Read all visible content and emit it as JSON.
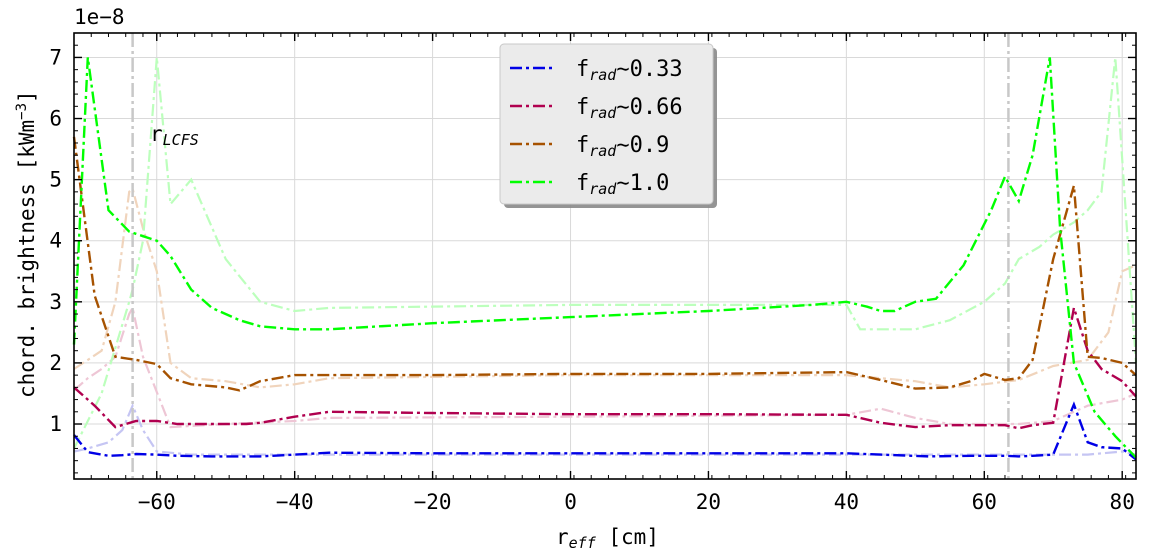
{
  "chart_data": {
    "type": "line",
    "offset_text": "1e−8",
    "xlabel": "r_eff [cm]",
    "ylabel": "chord. brightness [kWm⁻³]",
    "xlim": [
      -72,
      82
    ],
    "ylim": [
      0.1,
      7.4
    ],
    "xticks": [
      -60,
      -40,
      -20,
      0,
      20,
      40,
      60,
      80
    ],
    "xtick_labels": [
      "−60",
      "−40",
      "−20",
      "0",
      "20",
      "40",
      "60",
      "80"
    ],
    "yticks": [
      1,
      2,
      3,
      4,
      5,
      6,
      7
    ],
    "ytick_labels": [
      "1",
      "2",
      "3",
      "4",
      "5",
      "6",
      "7"
    ],
    "grid": true,
    "legend_position": "top-center",
    "lcfs_lines": [
      -63.5,
      63.5
    ],
    "lcfs_label": "r_LCFS",
    "series": [
      {
        "name": "f_rad ~ 0.33",
        "color": "#0000e6",
        "faint_color": "#c5c5f3",
        "x": [
          -72,
          -70,
          -67,
          -65,
          -63,
          -60,
          -57,
          -52,
          -45,
          -40,
          -35,
          -20,
          0,
          20,
          40,
          45,
          52,
          58,
          63,
          65,
          67,
          70,
          73,
          75,
          77,
          80,
          82
        ],
        "y": [
          0.82,
          0.54,
          0.48,
          0.49,
          0.51,
          0.5,
          0.48,
          0.47,
          0.47,
          0.5,
          0.53,
          0.52,
          0.52,
          0.52,
          0.52,
          0.5,
          0.47,
          0.48,
          0.48,
          0.47,
          0.48,
          0.5,
          1.32,
          0.7,
          0.62,
          0.6,
          0.42
        ],
        "faint_x": [
          -72,
          -70,
          -67,
          -65,
          -63.5,
          -62,
          -60,
          -55,
          -45,
          -35,
          0,
          40,
          50,
          60,
          70,
          75,
          80,
          82
        ],
        "faint_y": [
          0.55,
          0.6,
          0.7,
          0.9,
          1.3,
          0.9,
          0.55,
          0.5,
          0.5,
          0.5,
          0.5,
          0.5,
          0.5,
          0.5,
          0.5,
          0.5,
          0.55,
          0.5
        ]
      },
      {
        "name": "f_rad ~ 0.66",
        "color": "#b0004f",
        "faint_color": "#eec6d5",
        "x": [
          -72,
          -69,
          -66,
          -63,
          -60,
          -57,
          -52,
          -47,
          -45,
          -40,
          -35,
          -20,
          0,
          20,
          40,
          45,
          50,
          55,
          60,
          63,
          65,
          67,
          70,
          73,
          75,
          77,
          80,
          82
        ],
        "y": [
          1.6,
          1.3,
          0.95,
          1.05,
          1.05,
          1.0,
          1.0,
          1.0,
          1.02,
          1.12,
          1.2,
          1.18,
          1.16,
          1.16,
          1.15,
          1.02,
          0.95,
          0.98,
          0.98,
          0.98,
          0.93,
          0.98,
          1.02,
          2.9,
          2.2,
          1.9,
          1.7,
          1.45
        ],
        "faint_x": [
          -72,
          -70,
          -68,
          -66,
          -64,
          -63.5,
          -62,
          -58,
          -50,
          -40,
          -35,
          0,
          40,
          45,
          50,
          55,
          65,
          70,
          75,
          80,
          82
        ],
        "faint_y": [
          1.55,
          1.75,
          1.9,
          2.1,
          2.8,
          2.9,
          2.1,
          0.95,
          1.0,
          1.05,
          1.1,
          1.12,
          1.15,
          1.25,
          1.1,
          1.0,
          1.0,
          1.05,
          1.3,
          1.4,
          1.5
        ]
      },
      {
        "name": "f_rad ~ 0.9",
        "color": "#a65200",
        "faint_color": "#f0d4bc",
        "x": [
          -72,
          -69,
          -66,
          -63,
          -60,
          -58,
          -55,
          -50,
          -48,
          -45,
          -40,
          -35,
          -20,
          0,
          20,
          40,
          45,
          50,
          55,
          58,
          60,
          63,
          65,
          67,
          70,
          73,
          75,
          77,
          80,
          82
        ],
        "y": [
          5.7,
          3.1,
          2.1,
          2.05,
          1.98,
          1.75,
          1.65,
          1.6,
          1.55,
          1.7,
          1.8,
          1.8,
          1.8,
          1.82,
          1.82,
          1.85,
          1.72,
          1.58,
          1.6,
          1.7,
          1.82,
          1.72,
          1.75,
          2.05,
          3.7,
          4.9,
          2.1,
          2.08,
          2.0,
          1.8
        ],
        "faint_x": [
          -72,
          -70,
          -68,
          -66,
          -64,
          -63.5,
          -62,
          -60,
          -58,
          -55,
          -50,
          -45,
          -40,
          -35,
          0,
          40,
          45,
          50,
          55,
          60,
          65,
          70,
          75,
          78,
          80,
          82
        ],
        "faint_y": [
          1.9,
          2.05,
          2.2,
          3.0,
          4.8,
          4.85,
          4.2,
          3.5,
          2.0,
          1.75,
          1.7,
          1.6,
          1.65,
          1.75,
          1.8,
          1.8,
          1.75,
          1.7,
          1.6,
          1.65,
          1.72,
          1.95,
          2.05,
          2.5,
          3.5,
          3.6
        ]
      },
      {
        "name": "f_rad ~ 1.0",
        "color": "#00ff00",
        "faint_color": "#bcffbc",
        "x": [
          -72,
          -70,
          -67,
          -64,
          -60,
          -58,
          -55,
          -52,
          -48,
          -45,
          -40,
          -35,
          -20,
          0,
          20,
          35,
          40,
          43,
          45,
          47,
          50,
          53,
          57,
          61,
          63,
          65,
          67,
          69.5,
          71,
          73,
          76,
          79,
          82
        ],
        "y": [
          2.3,
          7.0,
          4.5,
          4.15,
          4.0,
          3.75,
          3.2,
          2.9,
          2.7,
          2.6,
          2.55,
          2.55,
          2.65,
          2.75,
          2.85,
          2.95,
          3.0,
          2.92,
          2.85,
          2.85,
          3.0,
          3.05,
          3.6,
          4.5,
          5.05,
          4.65,
          5.4,
          7.0,
          4.2,
          2.0,
          1.2,
          0.8,
          0.45
        ],
        "faint_x": [
          -72,
          -68,
          -64,
          -63.5,
          -62,
          -60,
          -58,
          -55,
          -50,
          -45,
          -40,
          -35,
          0,
          40,
          42,
          45,
          50,
          55,
          60,
          63,
          65,
          68,
          70,
          73,
          75,
          77,
          79,
          82
        ],
        "faint_y": [
          0.6,
          1.5,
          3.0,
          3.2,
          4.0,
          7.0,
          4.6,
          5.0,
          3.7,
          3.0,
          2.85,
          2.9,
          2.95,
          2.95,
          2.55,
          2.55,
          2.55,
          2.7,
          3.0,
          3.3,
          3.7,
          3.9,
          4.1,
          4.3,
          4.5,
          4.8,
          7.0,
          2.0
        ]
      }
    ]
  },
  "legend": {
    "labels": [
      {
        "prefix": "f",
        "sub": "rad",
        "suffix": "∼0.33"
      },
      {
        "prefix": "f",
        "sub": "rad",
        "suffix": "∼0.66"
      },
      {
        "prefix": "f",
        "sub": "rad",
        "suffix": "∼0.9"
      },
      {
        "prefix": "f",
        "sub": "rad",
        "suffix": "∼1.0"
      }
    ]
  },
  "annotation": {
    "prefix": "r",
    "sub": "LCFS"
  },
  "axes_text": {
    "xlabel_prefix": "r",
    "xlabel_sub": "eff",
    "xlabel_suffix": " [cm]",
    "ylabel_main": "chord. brightness [kWm",
    "ylabel_sup": "−3",
    "ylabel_end": "]"
  }
}
